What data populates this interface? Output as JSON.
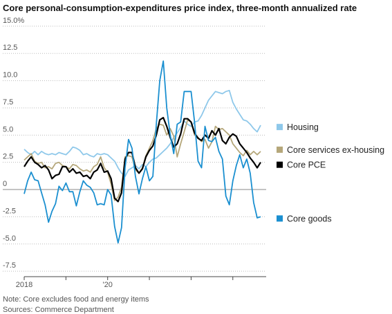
{
  "chart_data": {
    "type": "line",
    "title": "Core personal-consumption-expenditures price index, three-month annualized rate",
    "note": "Note: Core excludes food and energy items",
    "source": "Sources: Commerce Department",
    "categories": [
      "2018",
      null,
      null,
      null,
      null,
      null,
      null,
      null,
      null,
      null,
      null,
      null,
      null,
      null,
      null,
      null,
      null,
      null,
      null,
      null,
      null,
      null,
      null,
      null,
      "'20",
      null,
      null,
      null,
      null,
      null,
      null,
      null,
      null,
      null,
      null,
      null,
      null,
      null,
      null,
      null,
      null,
      null,
      null,
      null,
      null,
      null,
      null,
      null,
      null,
      null,
      null,
      null,
      null,
      null,
      null,
      null,
      null,
      null,
      null,
      null,
      null,
      null,
      null,
      null,
      null,
      null,
      null,
      null,
      null
    ],
    "series": [
      {
        "name": "Housing",
        "color": "#8ec8ea",
        "values": [
          3.7,
          3.4,
          3.2,
          3.5,
          3.2,
          3.5,
          3.3,
          3.2,
          3.3,
          3.2,
          3.4,
          3.3,
          3.2,
          3.5,
          3.9,
          3.8,
          3.6,
          3.2,
          3.3,
          3.1,
          3.0,
          3.3,
          3.2,
          3.3,
          3.2,
          2.9,
          2.6,
          2.0,
          1.5,
          1.2,
          1.8,
          2.0,
          2.2,
          1.9,
          2.3,
          2.1,
          2.5,
          2.8,
          2.9,
          3.2,
          3.5,
          3.8,
          4.2,
          4.8,
          5.2,
          5.7,
          6.3,
          6.0,
          5.8,
          6.2,
          6.3,
          6.8,
          7.5,
          8.2,
          8.6,
          9.0,
          8.9,
          8.8,
          9.0,
          9.1,
          8.0,
          7.4,
          6.9,
          6.4,
          6.3,
          6.0,
          5.6,
          5.3,
          5.9
        ]
      },
      {
        "name": "Core services ex-housing",
        "color": "#b5a77a",
        "values": [
          2.7,
          3.0,
          3.3,
          2.6,
          2.4,
          2.5,
          2.0,
          2.1,
          1.9,
          2.4,
          2.5,
          2.2,
          2.1,
          1.9,
          2.3,
          2.2,
          1.9,
          1.7,
          1.8,
          1.6,
          2.1,
          2.3,
          3.0,
          2.0,
          1.6,
          0.5,
          -1.0,
          -0.7,
          0.2,
          3.0,
          3.1,
          3.0,
          1.8,
          1.5,
          2.0,
          3.1,
          3.8,
          4.5,
          5.6,
          6.0,
          5.9,
          5.0,
          5.6,
          4.9,
          3.0,
          4.2,
          5.3,
          6.4,
          6.2,
          5.0,
          4.8,
          4.4,
          4.6,
          3.8,
          4.4,
          5.8,
          5.5,
          5.6,
          5.3,
          5.0,
          4.2,
          3.8,
          3.4,
          3.1,
          3.6,
          3.2,
          3.5,
          3.2,
          3.5
        ]
      },
      {
        "name": "Core PCE",
        "color": "#000000",
        "values": [
          2.1,
          2.6,
          3.0,
          2.5,
          2.3,
          2.0,
          2.2,
          1.8,
          1.0,
          1.3,
          1.4,
          2.1,
          2.1,
          1.6,
          1.9,
          1.5,
          1.6,
          1.2,
          1.3,
          1.0,
          1.6,
          1.8,
          2.4,
          1.6,
          1.7,
          1.0,
          -0.8,
          -1.1,
          -0.3,
          2.8,
          3.4,
          3.4,
          2.0,
          1.5,
          1.9,
          3.0,
          3.6,
          4.0,
          5.0,
          6.4,
          6.6,
          5.8,
          4.8,
          3.9,
          4.2,
          5.1,
          6.5,
          6.5,
          6.2,
          5.2,
          4.7,
          4.5,
          5.0,
          4.7,
          5.4,
          5.0,
          5.6,
          4.5,
          4.2,
          4.8,
          5.1,
          4.9,
          4.2,
          3.8,
          3.4,
          2.9,
          2.5,
          2.0,
          2.5
        ]
      },
      {
        "name": "Core goods",
        "color": "#1a8fd0",
        "values": [
          -0.4,
          0.8,
          1.6,
          0.9,
          0.8,
          -0.3,
          -1.4,
          -3.0,
          -2.0,
          -1.3,
          0.3,
          -0.1,
          0.6,
          -0.2,
          -0.2,
          -1.5,
          -0.2,
          0.8,
          0.4,
          0.2,
          -0.3,
          -1.4,
          -1.3,
          -1.4,
          0.0,
          -0.5,
          -3.4,
          -4.9,
          -3.5,
          2.0,
          4.6,
          3.8,
          1.2,
          -0.4,
          1.0,
          2.1,
          0.8,
          1.2,
          6.0,
          10.0,
          11.8,
          7.5,
          5.0,
          3.3,
          6.0,
          6.2,
          9.0,
          9.0,
          9.0,
          6.2,
          2.6,
          2.0,
          5.8,
          4.5,
          4.4,
          4.8,
          3.5,
          2.8,
          -0.6,
          -1.4,
          0.8,
          2.2,
          3.2,
          2.0,
          2.8,
          1.5,
          -1.2,
          -2.6,
          -2.5
        ]
      }
    ],
    "ylim": [
      -8,
      15.5
    ],
    "yticks": [
      {
        "value": 15,
        "label": "15.0%"
      },
      12.5,
      {
        "value": 10,
        "label": "10.0"
      },
      7.5,
      {
        "value": 5,
        "label": "5.0"
      },
      2.5,
      0,
      -2.5,
      {
        "value": -5,
        "label": "-5.0"
      },
      -7.5
    ],
    "grid": true
  }
}
